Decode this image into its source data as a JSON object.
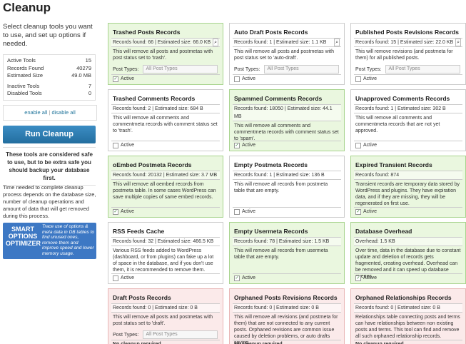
{
  "header": {
    "title": "Cleanup"
  },
  "sidebar": {
    "intro": "Select cleanup tools you want to use, and set up options if needed.",
    "stats": [
      {
        "label": "Active Tools",
        "value": "15"
      },
      {
        "label": "Records Found",
        "value": "40279"
      },
      {
        "label": "Estimated Size",
        "value": "49.0 MB"
      },
      {
        "label": "Inactive Tools",
        "value": "7"
      },
      {
        "label": "Disabled Tools",
        "value": "0"
      }
    ],
    "enable_all": "enable all",
    "separator": "|",
    "disable_all": "disable all",
    "button": "Run Cleanup",
    "warning": "These tools are considered safe to use, but to be extra safe you should backup your database first.",
    "time_note": "Time needed to complete cleanup process depends on the database size, number of cleanup operations and amount of data that will get removed during this process.",
    "ad": {
      "title": "SMART OPTIONS OPTIMIZER",
      "text": "Trace use of options & meta data in DB tables to find unused ones, remove them and improve speed and lower memory usage."
    }
  },
  "cards": [
    {
      "title": "Trashed Posts Records",
      "stats": "Records found: 66 | Estimated size: 66.0 KB",
      "description": "This will remove all posts and postmetas with post status set to 'trash'.",
      "post_types_label": "Post Types:",
      "post_types_value": "All Post Types",
      "footer": "Active",
      "state": "active"
    },
    {
      "title": "Auto Draft Posts Records",
      "stats": "Records found: 1 | Estimated size: 1.1 KB",
      "description": "This will remove all posts and postmetas with post status set to 'auto-draft'.",
      "post_types_label": "Post Types:",
      "post_types_value": "All Post Types",
      "footer": "Active",
      "state": "inactive"
    },
    {
      "title": "Published Posts Revisions Records",
      "stats": "Records found: 15 | Estimated size: 22.0 KB",
      "description": "This will remove revisions (and postmeta for them) for all published posts.",
      "post_types_label": "Post Types:",
      "post_types_value": "All Post Types",
      "footer": "Active",
      "state": "inactive"
    },
    {
      "title": "Trashed Comments Records",
      "stats": "Records found: 2 | Estimated size: 684 B",
      "description": "This will remove all comments and commentmeta records with comment status set to 'trash'.",
      "footer": "Active",
      "state": "inactive"
    },
    {
      "title": "Spammed Comments Records",
      "stats": "Records found: 18050 | Estimated size: 44.1 MB",
      "description": "This will remove all comments and commentmeta records with comment status set to 'spam'.",
      "footer": "Active",
      "state": "active"
    },
    {
      "title": "Unapproved Comments Records",
      "stats": "Records found: 1 | Estimated size: 302 B",
      "description": "This will remove all comments and commentmeta records that are not yet approved.",
      "footer": "Active",
      "state": "inactive"
    },
    {
      "title": "oEmbed Postmeta Records",
      "stats": "Records found: 20132 | Estimated size: 3.7 MB",
      "description": "This will remove all oembed records from postmeta table. In some cases WordPress can save multiple copies of same embed records.",
      "footer": "Active",
      "state": "active"
    },
    {
      "title": "Empty Postmeta Records",
      "stats": "Records found: 1 | Estimated size: 136 B",
      "description": "This will remove all records from postmeta table that are empty.",
      "footer": "Active",
      "state": "inactive"
    },
    {
      "title": "Expired Transient Records",
      "stats": "Records found: 874",
      "description": "Transient records are temporary data stored by WordPress and plugins. They have expiration data, and if they are missing, they will be regenerated on first use.",
      "footer": "Active",
      "state": "active"
    },
    {
      "title": "RSS Feeds Cache",
      "stats": "Records found: 32 | Estimated size: 466.5 KB",
      "description": "Various RSS feeds added to WordPress (dashboard, or from plugins) can fake up a lot of space in the database, and if you don't use them, it is recommended to remove them.",
      "footer": "Active",
      "state": "inactive"
    },
    {
      "title": "Empty Usermeta Records",
      "stats": "Records found: 78 | Estimated size: 1.5 KB",
      "description": "This will remove all records from usermeta table that are empty.",
      "footer": "Active",
      "state": "active"
    },
    {
      "title": "Database Overhead",
      "stats": "Overhead: 1.5 KB",
      "description": "Over time, data in the database due to constant update and deletion of records gets fragmented, creating overhead. Overhead can be removed and it can speed up database queries.",
      "footer": "Active",
      "state": "active"
    },
    {
      "title": "Draft Posts Records",
      "stats": "Records found: 0 | Estimated size: 0 B",
      "description": "This will remove all posts and postmetas with post status set to 'draft'.",
      "post_types_label": "Post Types:",
      "post_types_value": "All Post Types",
      "footer": "No cleanup required",
      "state": "empty"
    },
    {
      "title": "Orphaned Posts Revisions Records",
      "stats": "Records found: 0 | Estimated size: 0 B",
      "description": "This will remove all revisions (and postmeta for them) that are not connected to any current posts. Orphaned revisions are common issue caused by deletion problems, or auto drafts saving.",
      "footer": "No cleanup required",
      "state": "empty"
    },
    {
      "title": "Orphaned Relationships Records",
      "stats": "Records found: 0 | Estimated size: 0 B",
      "description": "Relationships table connecting posts and terms can have relationships between non existing posts and terms. This tool can find and remove all such orphaned relationship records.",
      "footer": "No cleanup required",
      "state": "empty"
    }
  ]
}
